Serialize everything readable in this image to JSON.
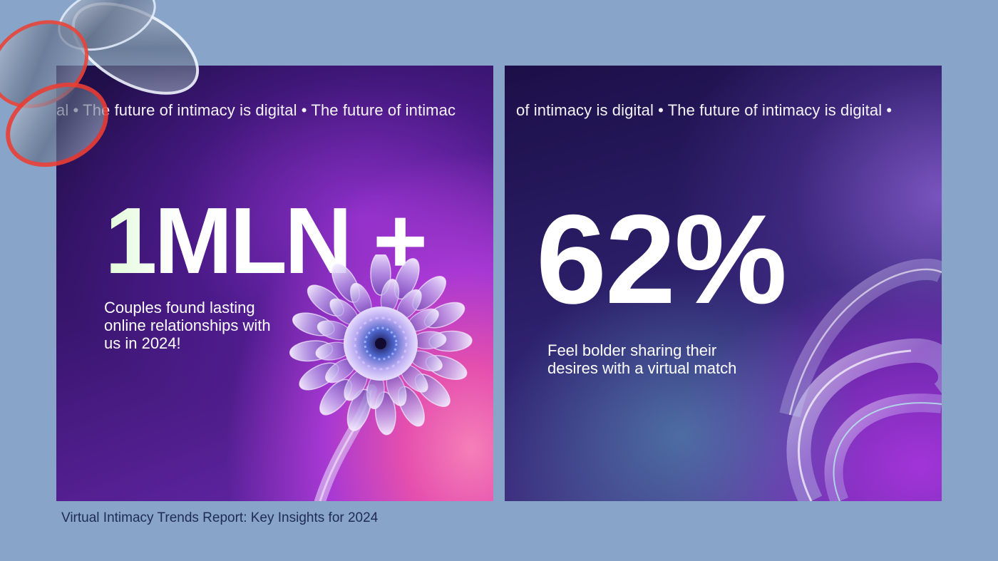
{
  "cards": [
    {
      "ticker": "al • The future of intimacy is digital • The future of intimac",
      "stat": "1MLN +",
      "caption": "Couples found lasting online relationships with us in 2024!"
    },
    {
      "ticker": "of intimacy is digital • The future of intimacy is digital •",
      "stat": "62%",
      "caption": "Feel bolder sharing their desires with a virtual match"
    }
  ],
  "footer": {
    "caption": "Virtual Intimacy Trends Report: Key Insights for 2024"
  },
  "icons": {
    "flower": "glass-flower-icon",
    "ribbon": "glass-ribbon-icon",
    "corner": "glass-knot-icon"
  },
  "colors": {
    "background": "#88a5c9",
    "card_dark": "#1d0e45",
    "accent_pink": "#e54fae",
    "accent_purple": "#a234d8",
    "footer_text": "#1f2a55"
  }
}
